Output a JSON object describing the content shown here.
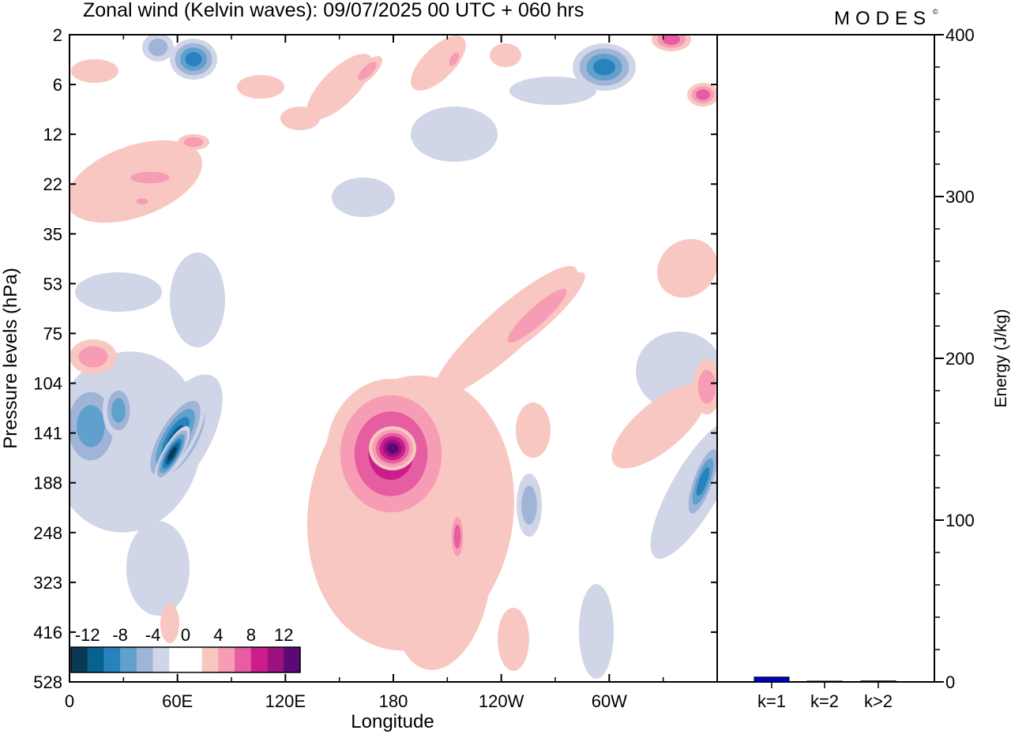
{
  "header": {
    "title": "Zonal wind (Kelvin waves):  09/07/2025  00 UTC  + 060 hrs",
    "brand": "MODES",
    "brand_mark": "©"
  },
  "chart_data": [
    {
      "type": "heatmap",
      "title": "Zonal wind (Kelvin waves):  09/07/2025  00 UTC  + 060 hrs",
      "xlabel": "Longitude",
      "ylabel": "Pressure levels (hPa)",
      "x_ticks": [
        {
          "lon": 0,
          "label": "0"
        },
        {
          "lon": 60,
          "label": "60E"
        },
        {
          "lon": 120,
          "label": "120E"
        },
        {
          "lon": 180,
          "label": "180"
        },
        {
          "lon": 240,
          "label": "120W"
        },
        {
          "lon": 300,
          "label": "60W"
        }
      ],
      "xlim": [
        0,
        360
      ],
      "y_levels": [
        "2",
        "6",
        "12",
        "22",
        "35",
        "53",
        "75",
        "104",
        "141",
        "188",
        "248",
        "323",
        "416",
        "528"
      ],
      "y_scale": "model levels (top 2 hPa, bottom 528 hPa)",
      "colorbar": {
        "labels": [
          "-12",
          "-8",
          "-4",
          "0",
          "4",
          "8",
          "12"
        ],
        "colors": [
          "#0b3853",
          "#08628f",
          "#2882bd",
          "#5fa0cc",
          "#a0b4d7",
          "#d0d5e7",
          "#ffffff",
          "#ffffff",
          "#f8c7c2",
          "#f69cb4",
          "#e65da1",
          "#cb1d8b",
          "#9c1180",
          "#5c0975"
        ],
        "placement": "bottom-left"
      },
      "features": [
        {
          "label": "easterly core",
          "lon": 62,
          "level": "141",
          "value": -14
        },
        {
          "label": "easterly core",
          "lon": 28,
          "level": "141",
          "value": -10
        },
        {
          "label": "westerly core",
          "lon": 180,
          "level": "141",
          "value": 13
        },
        {
          "label": "easterly core",
          "lon": 358,
          "level": "188",
          "value": -10
        },
        {
          "label": "westerly core",
          "lon": 204,
          "level": "248",
          "value": 7
        }
      ]
    },
    {
      "type": "bar",
      "ylabel": "Energy (J/kg)",
      "categories": [
        "k=1",
        "k=2",
        "k>2"
      ],
      "values": [
        3,
        0.3,
        0.6
      ],
      "ylim": [
        0,
        400
      ],
      "y_ticks": [
        0,
        100,
        200,
        300,
        400
      ],
      "bar_color": "#0000cc"
    }
  ]
}
